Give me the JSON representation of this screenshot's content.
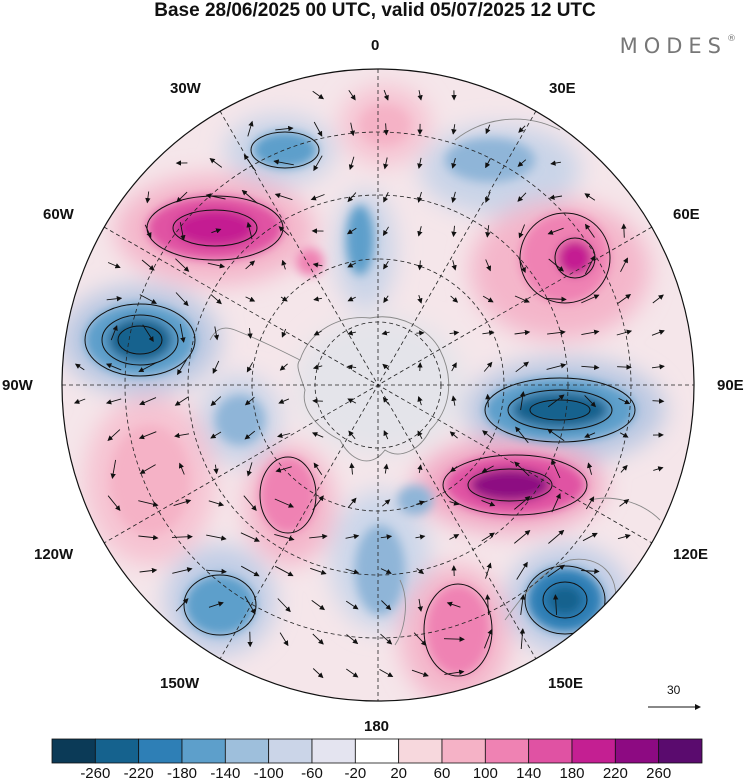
{
  "title": "Base 28/06/2025 00 UTC, valid 05/07/2025 12 UTC",
  "brand": {
    "name": "MODES",
    "mark": "®"
  },
  "longitude_labels": {
    "lon_0": "0",
    "lon_30e": "30E",
    "lon_60e": "60E",
    "lon_90e": "90E",
    "lon_120e": "120E",
    "lon_150e": "150E",
    "lon_180": "180",
    "lon_150w": "150W",
    "lon_120w": "120W",
    "lon_90w": "90W",
    "lon_60w": "60W",
    "lon_30w": "30W"
  },
  "reference_vector": {
    "value": "30"
  },
  "colorbar": {
    "labels": [
      "-260",
      "-220",
      "-180",
      "-140",
      "-100",
      "-60",
      "-20",
      "20",
      "60",
      "100",
      "140",
      "180",
      "220",
      "260"
    ],
    "colors": [
      "#0b3a57",
      "#15628e",
      "#2e7fb6",
      "#5d9fcb",
      "#9ebfdc",
      "#cbd5e8",
      "#e4e4f0",
      "#ffffff",
      "#f7d8dd",
      "#f5b2c6",
      "#ef82b3",
      "#e052a3",
      "#c41f92",
      "#8d0a82",
      "#5a0b6e"
    ]
  },
  "colors": {
    "coast": "#888888",
    "contour": "#111111",
    "land": "#e2e2e6"
  }
}
